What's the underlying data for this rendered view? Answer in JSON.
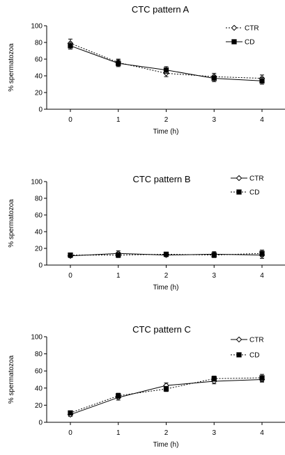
{
  "chart_data": [
    {
      "type": "line",
      "title": "CTC pattern A",
      "xlabel": "Time (h)",
      "ylabel": "% spermatozoa",
      "categories": [
        "0",
        "1",
        "2",
        "3",
        "4"
      ],
      "ylim": [
        0,
        100
      ],
      "yticks": [
        "0",
        "20",
        "40",
        "60",
        "80",
        "100"
      ],
      "grid": false,
      "legend_position": "top-right",
      "series": [
        {
          "name": "CTR",
          "marker": "open-diamond",
          "line": "dotted",
          "values": [
            79,
            56,
            43,
            39,
            37
          ],
          "error": [
            5,
            4,
            4,
            4,
            4
          ]
        },
        {
          "name": "CD",
          "marker": "filled-square",
          "line": "solid",
          "values": [
            76,
            55,
            47,
            37,
            34
          ],
          "error": [
            4,
            4,
            4,
            4,
            4
          ]
        }
      ]
    },
    {
      "type": "line",
      "title": "CTC pattern B",
      "xlabel": "Time (h)",
      "ylabel": "% spermatozoa",
      "categories": [
        "0",
        "1",
        "2",
        "3",
        "4"
      ],
      "ylim": [
        0,
        100
      ],
      "yticks": [
        "0",
        "20",
        "40",
        "60",
        "80",
        "100"
      ],
      "grid": false,
      "legend_position": "top-right",
      "series": [
        {
          "name": "CTR",
          "marker": "open-diamond",
          "line": "solid",
          "values": [
            11,
            14,
            12,
            13,
            12
          ],
          "error": [
            2,
            3,
            2,
            3,
            4
          ]
        },
        {
          "name": "CD",
          "marker": "filled-square",
          "line": "dotted",
          "values": [
            12,
            12,
            13,
            12,
            14
          ],
          "error": [
            2,
            3,
            2,
            3,
            4
          ]
        }
      ]
    },
    {
      "type": "line",
      "title": "CTC pattern C",
      "xlabel": "Time (h)",
      "ylabel": "% spermatozoa",
      "categories": [
        "0",
        "1",
        "2",
        "3",
        "4"
      ],
      "ylim": [
        0,
        100
      ],
      "yticks": [
        "0",
        "20",
        "40",
        "60",
        "80",
        "100"
      ],
      "grid": false,
      "legend_position": "top-right",
      "series": [
        {
          "name": "CTR",
          "marker": "open-diamond",
          "line": "solid",
          "values": [
            9,
            29,
            43,
            48,
            50
          ],
          "error": [
            2,
            3,
            3,
            3,
            3
          ]
        },
        {
          "name": "CD",
          "marker": "filled-square",
          "line": "dotted",
          "values": [
            11,
            31,
            39,
            51,
            52
          ],
          "error": [
            2,
            3,
            3,
            3,
            4
          ]
        }
      ]
    }
  ]
}
